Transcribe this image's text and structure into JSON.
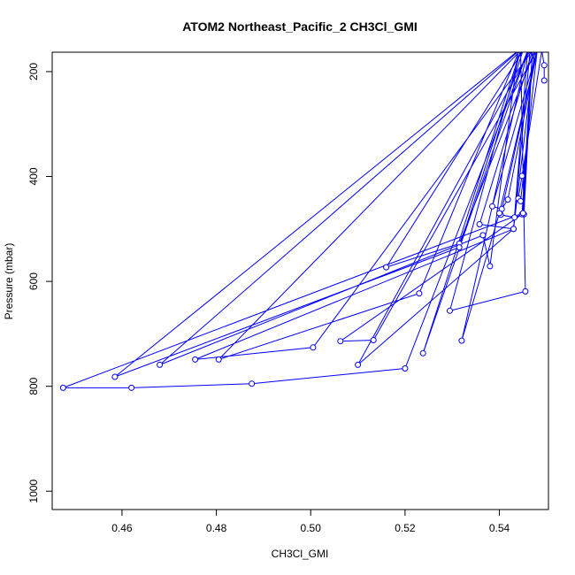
{
  "chart_data": {
    "type": "line",
    "title": "ATOM2 Northeast_Pacific_2 CH3Cl_GMI",
    "xlabel": "CH3Cl_GMI",
    "ylabel": "Pressure (mbar)",
    "xlim": [
      0.4452,
      0.5504
    ],
    "ylim": [
      1035,
      163
    ],
    "y_reversed": true,
    "xticks": [
      0.46,
      0.48,
      0.5,
      0.52,
      0.54
    ],
    "xtick_labels": [
      "0.46",
      "0.48",
      "0.50",
      "0.52",
      "0.54"
    ],
    "yticks": [
      200,
      400,
      600,
      800,
      1000
    ],
    "ytick_labels": [
      "200",
      "400",
      "600",
      "800",
      "1000"
    ],
    "grid": false,
    "series": [
      {
        "color": "#0000ff",
        "points": [
          [
            0.5495,
            217
          ],
          [
            0.5495,
            188
          ],
          [
            0.549,
            160
          ],
          [
            0.5448,
            399
          ],
          [
            0.544,
            442
          ],
          [
            0.5445,
            447
          ],
          [
            0.548,
            160
          ],
          [
            0.5385,
            457
          ],
          [
            0.5405,
            462
          ],
          [
            0.5418,
            444
          ],
          [
            0.548,
            160
          ],
          [
            0.5403,
            473
          ],
          [
            0.5432,
            478
          ],
          [
            0.5452,
            472
          ],
          [
            0.547,
            160
          ],
          [
            0.5358,
            491
          ],
          [
            0.543,
            500
          ],
          [
            0.5475,
            160
          ],
          [
            0.5315,
            528
          ],
          [
            0.516,
            573
          ],
          [
            0.545,
            160
          ],
          [
            0.5315,
            535
          ],
          [
            0.4585,
            782
          ],
          [
            0.544,
            160
          ],
          [
            0.538,
            571
          ],
          [
            0.5365,
            512
          ],
          [
            0.468,
            759
          ],
          [
            0.5442,
            160
          ],
          [
            0.523,
            623
          ],
          [
            0.4805,
            749
          ],
          [
            0.5445,
            160
          ],
          [
            0.5295,
            656
          ],
          [
            0.5455,
            619
          ],
          [
            0.5445,
            160
          ],
          [
            0.5238,
            737
          ],
          [
            0.546,
            160
          ],
          [
            0.532,
            713
          ],
          [
            0.54,
            470
          ],
          [
            0.548,
            160
          ],
          [
            0.5133,
            712
          ],
          [
            0.5063,
            714
          ],
          [
            0.5448,
            472
          ],
          [
            0.547,
            160
          ],
          [
            0.5005,
            726
          ],
          [
            0.4755,
            749
          ],
          [
            0.543,
            500
          ],
          [
            0.5465,
            160
          ],
          [
            0.51,
            759
          ],
          [
            0.543,
            500
          ],
          [
            0.546,
            160
          ],
          [
            0.52,
            766
          ],
          [
            0.4875,
            795
          ],
          [
            0.462,
            803
          ],
          [
            0.4475,
            803
          ],
          [
            0.545,
            470
          ],
          [
            0.547,
            160
          ]
        ]
      }
    ]
  }
}
